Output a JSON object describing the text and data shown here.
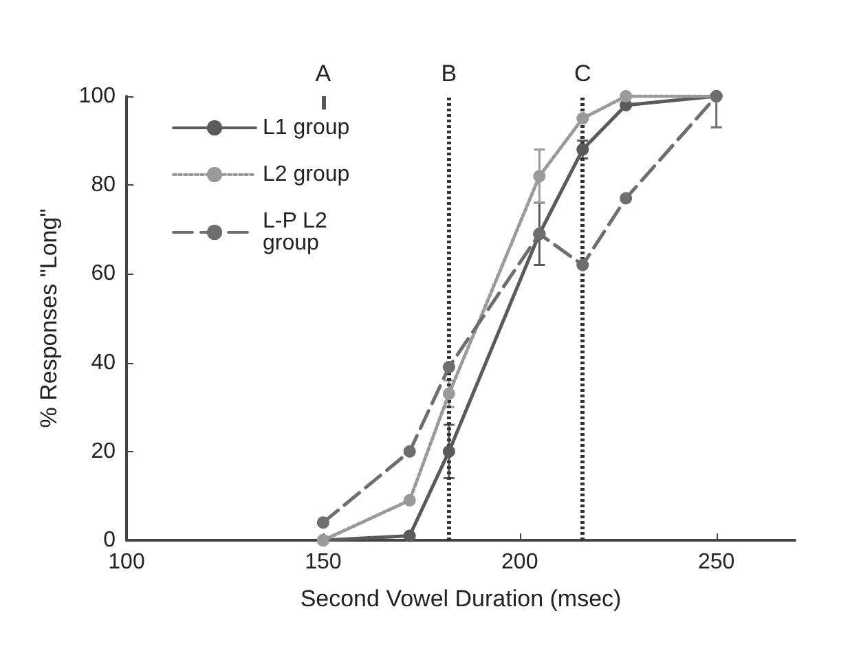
{
  "chart_data": {
    "type": "line",
    "xlabel": "Second Vowel Duration (msec)",
    "ylabel": "% Responses \"Long\"",
    "x": [
      150,
      172,
      182,
      205,
      216,
      227,
      250
    ],
    "series": [
      {
        "name": "L1 group",
        "color": "#5a5a5a",
        "line_style": "solid",
        "values": [
          0,
          1,
          20,
          69,
          88,
          98,
          100
        ],
        "errors": [
          null,
          null,
          6,
          7,
          2,
          null,
          null
        ]
      },
      {
        "name": "L2 group",
        "color": "#9a9a9a",
        "line_style": "dotted",
        "values": [
          0,
          9,
          33,
          82,
          95,
          100,
          100
        ],
        "errors": [
          null,
          null,
          3,
          6,
          null,
          null,
          null
        ]
      },
      {
        "name": "L-P L2 group",
        "color": "#6e6e6e",
        "line_style": "dashed",
        "values": [
          4,
          20,
          39,
          69,
          62,
          77,
          100
        ],
        "errors": [
          null,
          null,
          null,
          null,
          null,
          null,
          [
            93,
            100
          ]
        ]
      }
    ],
    "xlim": [
      100,
      270
    ],
    "xticks": [
      100,
      150,
      200,
      250
    ],
    "ylim": [
      0,
      100
    ],
    "yticks": [
      0,
      20,
      40,
      60,
      80,
      100
    ],
    "ref_lines": [
      {
        "axis": "x",
        "value": 150,
        "label": "A",
        "line_style": "solid",
        "color": "#555555"
      },
      {
        "axis": "x",
        "value": 182,
        "label": "B",
        "line_style": "dotted",
        "color": "#333333"
      },
      {
        "axis": "x",
        "value": 216,
        "label": "C",
        "line_style": "dotted",
        "color": "#333333"
      }
    ],
    "marker": "circle",
    "grid": false,
    "legend": "top left"
  }
}
